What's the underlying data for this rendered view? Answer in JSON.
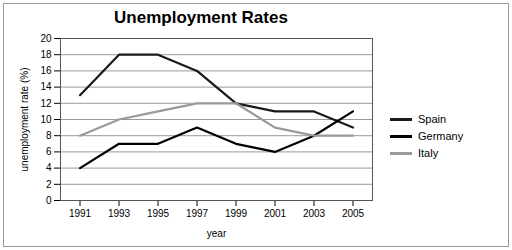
{
  "chart_data": {
    "type": "line",
    "title": "Unemployment Rates",
    "x_label": "year",
    "y_label": "unemployment rate (%)",
    "x": [
      1991,
      1993,
      1995,
      1997,
      1999,
      2001,
      2003,
      2005
    ],
    "series": [
      {
        "name": "Spain",
        "color": "#1a1a1a",
        "values": [
          13,
          18,
          18,
          16,
          12,
          11,
          11,
          9
        ]
      },
      {
        "name": "Germany",
        "color": "#000000",
        "values": [
          4,
          7,
          7,
          9,
          7,
          6,
          8,
          11
        ]
      },
      {
        "name": "Italy",
        "color": "#9a9a9a",
        "values": [
          8,
          10,
          11,
          12,
          12,
          9,
          8,
          8
        ]
      }
    ],
    "xlim": [
      1990,
      2006
    ],
    "xticks": [
      1991,
      1993,
      1995,
      1997,
      1999,
      2001,
      2003,
      2005
    ],
    "ylim": [
      0,
      20
    ],
    "yticks": [
      0,
      2,
      4,
      6,
      8,
      10,
      12,
      14,
      16,
      18,
      20
    ],
    "grid": true,
    "legend": "right"
  }
}
